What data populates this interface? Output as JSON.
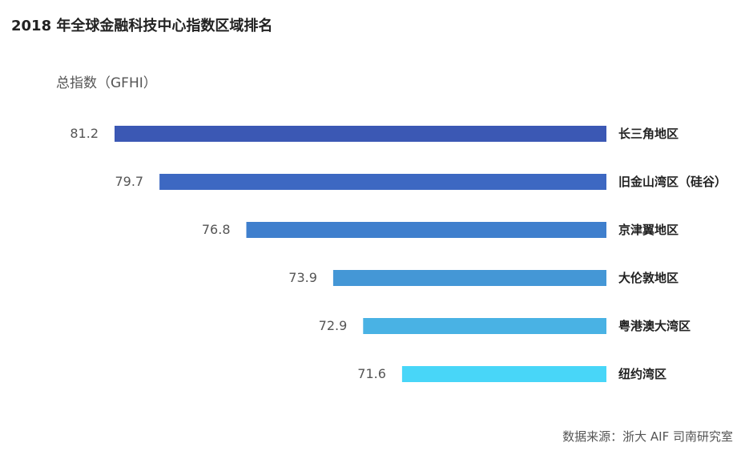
{
  "title": "2018 年全球金融科技中心指数区域排名",
  "source": "数据来源：浙大 AIF 司南研究室",
  "chart_data": {
    "type": "bar",
    "orientation": "horizontal",
    "title": "2018 年全球金融科技中心指数区域排名",
    "ylabel": "总指数（GFHI）",
    "categories": [
      "长三角地区",
      "旧金山湾区（硅谷）",
      "京津翼地区",
      "大伦敦地区",
      "粤港澳大湾区",
      "纽约湾区"
    ],
    "values": [
      81.2,
      79.7,
      76.8,
      73.9,
      72.9,
      71.6
    ],
    "colors": [
      "#3b58b4",
      "#3d68c2",
      "#3f7fcd",
      "#4497d6",
      "#49b2e4",
      "#48d6f8"
    ],
    "grid": false,
    "legend": "none"
  }
}
